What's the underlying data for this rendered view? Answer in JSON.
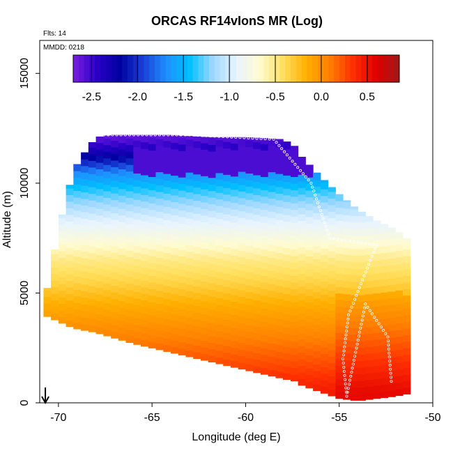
{
  "chart_data": {
    "type": "heatmap",
    "title": "ORCAS RF14vIonS MR (Log)",
    "corner_notes": [
      "Flts: 14",
      "MMDD: 0218"
    ],
    "xlabel": "Longitude (deg E)",
    "ylabel": "Altitude (m)",
    "xlim": [
      -71,
      -50
    ],
    "ylim": [
      0,
      16500
    ],
    "xticks": [
      -70,
      -65,
      -60,
      -55,
      -50
    ],
    "yticks": [
      0,
      5000,
      10000,
      15000
    ],
    "colorbar": {
      "range": [
        -2.7,
        0.85
      ],
      "ticks": [
        -2.5,
        -2.0,
        -1.5,
        -1.0,
        -0.5,
        0.0,
        0.5
      ],
      "tick_labels": [
        "-2.5",
        "-2.0",
        "-1.5",
        "-1.0",
        "-0.5",
        "0.0",
        "0.5"
      ],
      "colors": [
        "#7b1fe0",
        "#2b00c8",
        "#0000a0",
        "#1a3fd6",
        "#1f8fff",
        "#00c0ff",
        "#9fd8ff",
        "#e8f4ff",
        "#fffbd0",
        "#ffe060",
        "#ffb000",
        "#ff8000",
        "#ff3000",
        "#e00000",
        "#a01818"
      ]
    },
    "field_envelope": {
      "longitudes": [
        -70.8,
        -70.5,
        -70.0,
        -69.2,
        -68.6,
        -68.0,
        -67.2,
        -66.0,
        -64.0,
        -62.0,
        -60.0,
        -58.0,
        -57.4,
        -57.0,
        -56.0,
        -55.0,
        -54.0,
        -53.0,
        -52.0,
        -51.4
      ],
      "top_altitudes": [
        4500,
        5600,
        7900,
        10600,
        11400,
        12100,
        12200,
        12200,
        12200,
        12100,
        12100,
        12000,
        11700,
        11200,
        10300,
        9500,
        8800,
        8300,
        7900,
        7500
      ],
      "bottom_altitudes": [
        4000,
        3900,
        3700,
        3400,
        3300,
        3200,
        3000,
        2700,
        2300,
        1900,
        1500,
        1100,
        1000,
        800,
        500,
        200,
        100,
        200,
        300,
        400
      ]
    },
    "field_levels": [
      {
        "altitude": 500,
        "value": 0.45
      },
      {
        "altitude": 1500,
        "value": 0.3
      },
      {
        "altitude": 2500,
        "value": 0.15
      },
      {
        "altitude": 3500,
        "value": 0.0
      },
      {
        "altitude": 4500,
        "value": -0.15
      },
      {
        "altitude": 5500,
        "value": -0.35
      },
      {
        "altitude": 6500,
        "value": -0.5
      },
      {
        "altitude": 7500,
        "value": -0.75
      },
      {
        "altitude": 8500,
        "value": -1.0
      },
      {
        "altitude": 9500,
        "value": -1.3
      },
      {
        "altitude": 10500,
        "value": -1.7
      },
      {
        "altitude": 11200,
        "value": -2.2
      },
      {
        "altitude": 11800,
        "value": -2.5
      },
      {
        "altitude": 12200,
        "value": -2.65
      }
    ],
    "dark_core": {
      "lon_range": [
        -66,
        -56.5
      ],
      "alt_range": [
        10400,
        11600
      ],
      "value": -2.55
    },
    "flight_track": [
      {
        "lon": -67.8,
        "alt": 12200
      },
      {
        "lon": -63.0,
        "alt": 12200
      },
      {
        "lon": -58.5,
        "alt": 12000
      },
      {
        "lon": -56.5,
        "alt": 10000
      },
      {
        "lon": -55.5,
        "alt": 7500
      },
      {
        "lon": -54.0,
        "alt": 7300
      },
      {
        "lon": -53.0,
        "alt": 7200
      },
      {
        "lon": -54.5,
        "alt": 4000
      },
      {
        "lon": -54.8,
        "alt": 2000
      },
      {
        "lon": -54.6,
        "alt": 300
      },
      {
        "lon": -53.6,
        "alt": 4500
      },
      {
        "lon": -52.4,
        "alt": 3000
      },
      {
        "lon": -52.2,
        "alt": 800
      }
    ],
    "marker": {
      "lon": -70.7,
      "alt": 0,
      "symbol": "down-arrow"
    }
  }
}
